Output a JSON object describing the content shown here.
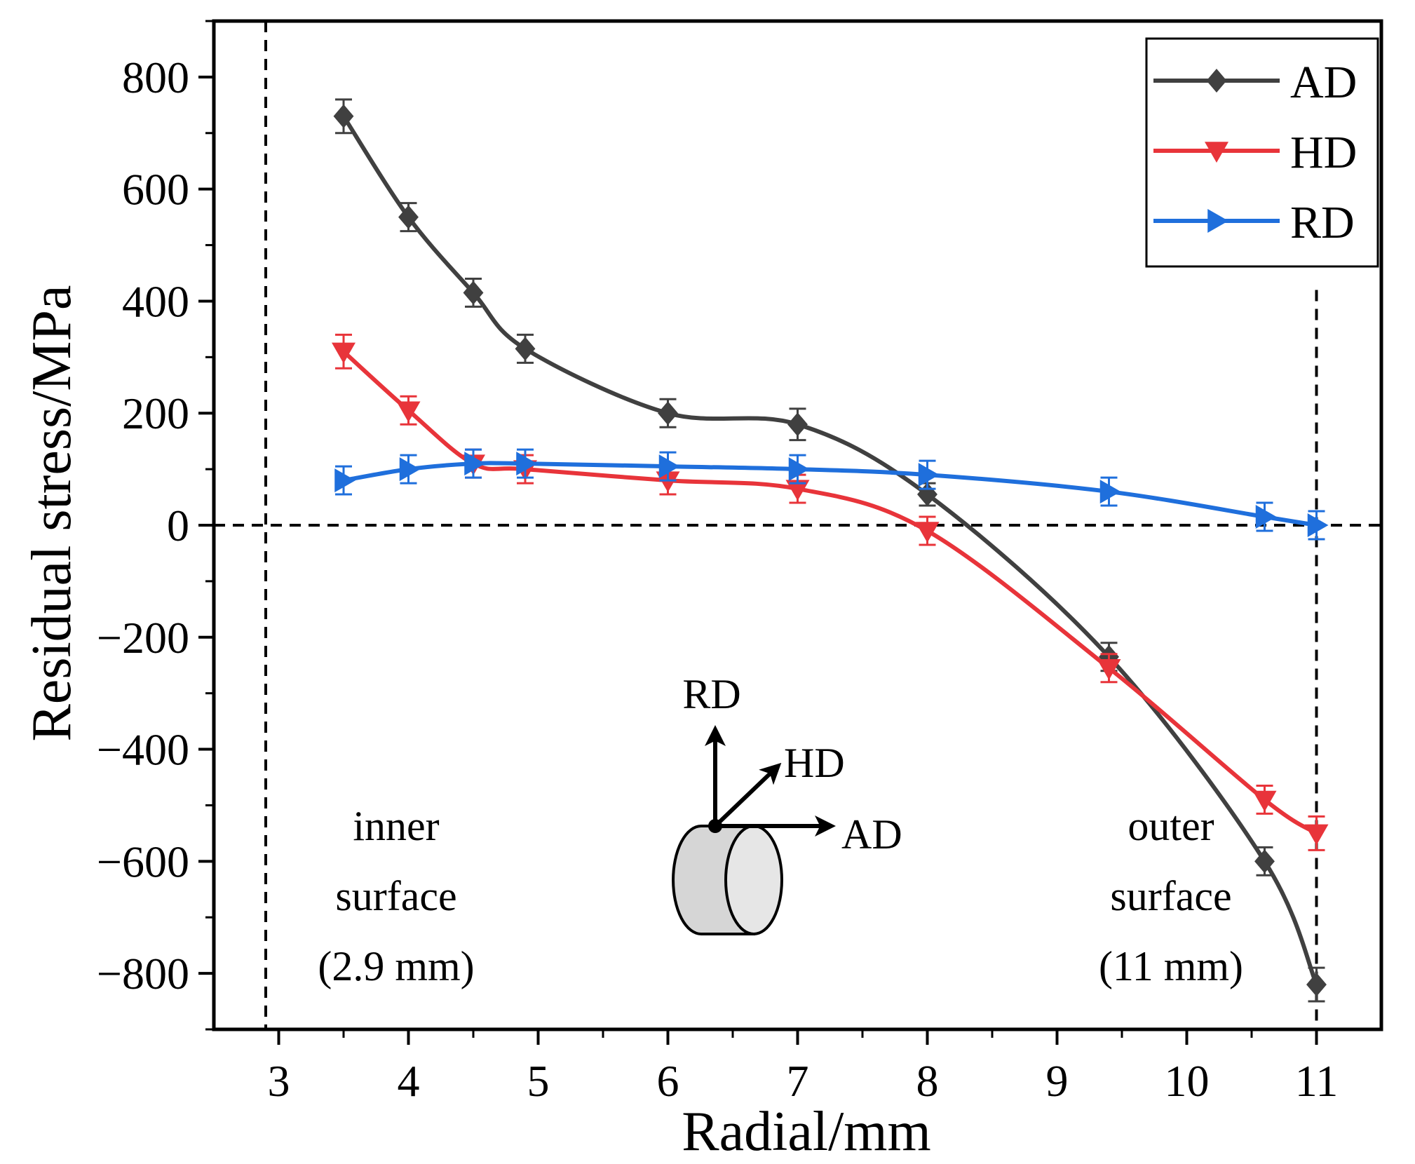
{
  "chart_data": {
    "type": "line",
    "title": "",
    "xlabel": "Radial/mm",
    "ylabel": "Residual stress/MPa",
    "xlim": [
      2.5,
      11.5
    ],
    "ylim": [
      -900,
      900
    ],
    "xticks": [
      3,
      4,
      5,
      6,
      7,
      8,
      9,
      10,
      11
    ],
    "xtick_labels": [
      "3",
      "4",
      "5",
      "6",
      "7",
      "8",
      "9",
      "10",
      "11"
    ],
    "yticks": [
      -800,
      -600,
      -400,
      -200,
      0,
      200,
      400,
      600,
      800
    ],
    "ytick_labels": [
      "−800",
      "−600",
      "−400",
      "−200",
      "0",
      "200",
      "400",
      "600",
      "800"
    ],
    "grid": false,
    "legend_position": "top-right",
    "series": [
      {
        "name": "AD",
        "color": "#404040",
        "marker": "diamond",
        "x": [
          3.5,
          4.0,
          4.5,
          4.9,
          6.0,
          7.0,
          8.0,
          9.4,
          10.6,
          11.0
        ],
        "y": [
          730,
          550,
          415,
          315,
          200,
          180,
          55,
          -235,
          -600,
          -820
        ],
        "error": [
          30,
          25,
          25,
          25,
          25,
          28,
          20,
          25,
          25,
          30
        ]
      },
      {
        "name": "HD",
        "color": "#e8343a",
        "marker": "triangle-down",
        "x": [
          3.5,
          4.0,
          4.5,
          4.9,
          6.0,
          7.0,
          8.0,
          9.4,
          10.6,
          11.0
        ],
        "y": [
          310,
          205,
          110,
          100,
          80,
          65,
          -10,
          -255,
          -490,
          -550
        ],
        "error": [
          30,
          25,
          25,
          25,
          25,
          25,
          25,
          25,
          25,
          30
        ]
      },
      {
        "name": "RD",
        "color": "#1f6fdc",
        "marker": "triangle-right",
        "x": [
          3.5,
          4.0,
          4.5,
          4.9,
          6.0,
          7.0,
          8.0,
          9.4,
          10.6,
          11.0
        ],
        "y": [
          80,
          100,
          110,
          110,
          105,
          100,
          90,
          60,
          15,
          0
        ],
        "error": [
          25,
          25,
          25,
          25,
          25,
          25,
          25,
          25,
          25,
          25
        ]
      }
    ],
    "reference_lines": [
      {
        "orientation": "vertical",
        "value": 2.9
      },
      {
        "orientation": "vertical",
        "value": 11.0
      },
      {
        "orientation": "horizontal",
        "value": 0
      }
    ],
    "annotations": {
      "inner": [
        "inner",
        "surface",
        "(2.9 mm)"
      ],
      "outer": [
        "outer",
        "surface",
        "(11 mm)"
      ]
    },
    "inset": {
      "axis_labels": [
        "RD",
        "HD",
        "AD"
      ]
    }
  }
}
